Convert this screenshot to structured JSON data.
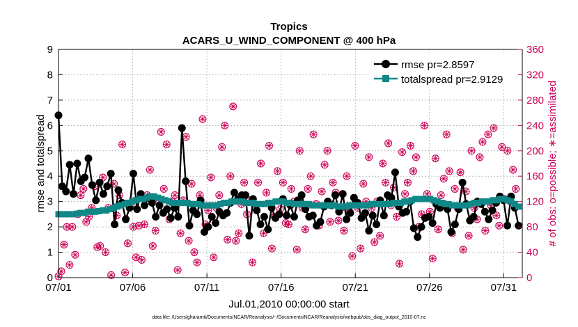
{
  "chart_data": {
    "type": "line",
    "title": "Tropics",
    "subtitle": "ACARS_U_WIND_COMPONENT @ 400 hPa",
    "xlabel": "Jul.01,2010 00:00:00 start",
    "ylabel": "rmse and totalspread",
    "ylabel_right": "# of obs: o=possible; ∗=assimilated",
    "footer": "data file: /Users/gharamti/Documents/NCAR/Reanalysis/~/Documents/NCAR/Reanalysis/webpub/obs_diag_output_2010-07.nc",
    "xlim": [
      0,
      31.25
    ],
    "ylim": [
      0,
      9
    ],
    "ylim_right": [
      0,
      360
    ],
    "x_tick_values": [
      0,
      5,
      10,
      15,
      20,
      25,
      30
    ],
    "x_tick_labels": [
      "07/01",
      "07/06",
      "07/11",
      "07/16",
      "07/21",
      "07/26",
      "07/31"
    ],
    "y_ticks": [
      0,
      1,
      2,
      3,
      4,
      5,
      6,
      7,
      8,
      9
    ],
    "y_ticks_right": [
      0,
      40,
      80,
      120,
      160,
      200,
      240,
      280,
      320,
      360
    ],
    "legend": [
      "rmse pr=2.8597",
      "totalspread pr=2.9129"
    ],
    "legend_position": "top-right",
    "grid": true,
    "series": [
      {
        "name": "rmse",
        "color": "#000000",
        "marker": "circle",
        "values": [
          6.4,
          3.6,
          3.4,
          4.45,
          3.3,
          4.5,
          3.8,
          3.95,
          4.7,
          3.65,
          3.05,
          3.75,
          3.3,
          3.6,
          4.1,
          2.1,
          3.45,
          2.95,
          2.3,
          2.75,
          4.1,
          2.7,
          3.3,
          2.85,
          3.15,
          2.95,
          2.4,
          2.85,
          2.55,
          2.7,
          2.35,
          2.75,
          2.4,
          5.9,
          3.8,
          2.05,
          2.65,
          2.5,
          3.05,
          1.8,
          2.0,
          2.4,
          2.15,
          2.6,
          2.45,
          2.55,
          2.95,
          3.35,
          3.1,
          3.25,
          3.25,
          1.65,
          3.1,
          2.65,
          2.1,
          2.4,
          1.9,
          2.75,
          2.35,
          2.5,
          3.1,
          2.45,
          2.85,
          2.4,
          3.05,
          3.25,
          2.7,
          2.4,
          2.45,
          2.05,
          2.2,
          2.8,
          3.0,
          2.85,
          3.25,
          2.6,
          3.3,
          2.3,
          2.55,
          3.15,
          2.95,
          2.35,
          2.55,
          1.85,
          2.45,
          2.1,
          3.05,
          2.45,
          3.25,
          3.15,
          4.15,
          2.8,
          2.55,
          2.6,
          3.0,
          1.95,
          1.6,
          2.0,
          2.35,
          2.4,
          2.15,
          2.9,
          2.75,
          2.9,
          2.7,
          1.8,
          2.1,
          2.7,
          3.75,
          2.9,
          2.25,
          2.4,
          3.0,
          2.9,
          2.6,
          2.3,
          2.65,
          2.95,
          3.2,
          3.05,
          2.05,
          3.2,
          2.75,
          2.05
        ]
      },
      {
        "name": "totalspread",
        "color": "#118888",
        "marker": "square",
        "values": [
          2.5,
          2.5,
          2.5,
          2.5,
          2.5,
          2.52,
          2.55,
          2.55,
          2.6,
          2.6,
          2.6,
          2.62,
          2.65,
          2.65,
          2.7,
          2.75,
          2.8,
          2.85,
          2.9,
          2.95,
          3.0,
          3.05,
          3.1,
          3.1,
          3.15,
          3.2,
          3.2,
          3.15,
          3.1,
          3.05,
          3.0,
          2.95,
          2.95,
          2.95,
          2.95,
          2.95,
          2.9,
          2.9,
          2.9,
          2.85,
          2.85,
          2.85,
          2.85,
          2.85,
          2.9,
          2.95,
          2.95,
          3.0,
          3.0,
          3.0,
          3.0,
          2.95,
          2.95,
          2.95,
          2.9,
          2.9,
          2.9,
          2.95,
          2.95,
          3.0,
          3.0,
          3.0,
          2.95,
          2.95,
          2.9,
          2.9,
          2.9,
          2.9,
          2.9,
          2.85,
          2.85,
          2.85,
          2.85,
          2.85,
          2.85,
          2.85,
          2.8,
          2.8,
          2.8,
          2.85,
          2.85,
          2.85,
          2.85,
          2.85,
          2.85,
          2.9,
          2.9,
          2.9,
          2.9,
          2.9,
          2.9,
          2.95,
          2.95,
          2.95,
          3.0,
          3.0,
          3.05,
          3.1,
          3.1,
          3.1,
          3.1,
          3.1,
          3.05,
          3.0,
          2.95,
          2.9,
          2.9,
          2.85,
          2.85,
          2.85,
          2.85,
          2.85,
          2.9,
          2.95,
          2.95,
          3.0,
          3.0,
          3.0,
          3.05,
          3.05,
          3.1,
          3.1,
          3.05,
          3.0,
          2.9,
          2.8
        ]
      }
    ],
    "obs_possible": [
      2,
      10,
      52,
      80,
      20,
      80,
      36,
      100,
      130,
      140,
      88,
      96,
      110,
      144,
      48,
      50,
      158,
      40,
      110,
      4,
      148,
      98,
      130,
      210,
      8,
      54,
      112,
      80,
      32,
      82,
      28,
      84,
      130,
      170,
      50,
      74,
      124,
      230,
      140,
      210,
      92,
      120,
      130,
      12,
      70,
      122,
      222,
      58,
      148,
      40,
      24,
      130,
      250,
      84,
      106,
      158,
      32,
      110,
      130,
      206,
      240,
      60,
      160,
      270,
      58,
      70,
      116,
      150,
      100,
      122,
      24,
      110,
      150,
      180,
      70,
      134,
      208,
      46,
      96,
      168,
      108,
      150,
      86,
      84,
      140,
      120,
      44,
      200,
      110,
      76,
      140,
      160,
      226,
      116,
      82,
      136,
      178,
      200,
      88,
      150,
      134,
      90,
      110,
      74,
      160,
      104,
      34,
      208,
      110,
      46,
      148,
      120,
      190,
      110,
      56,
      120,
      66,
      180,
      150,
      212,
      114,
      142,
      96,
      22,
      198,
      132,
      150,
      208,
      168,
      190,
      80,
      100,
      240,
      132,
      104,
      30,
      188,
      76,
      130,
      156,
      226,
      168,
      70,
      140,
      110,
      166,
      44,
      136,
      66,
      200,
      110,
      92,
      190,
      214,
      74,
      226,
      114,
      236,
      98,
      82,
      206,
      124,
      200,
      120,
      170,
      140
    ],
    "obs_assimilated": [
      2,
      10,
      52,
      80,
      20,
      80,
      36,
      100,
      130,
      140,
      88,
      96,
      110,
      144,
      48,
      50,
      158,
      40,
      110,
      4,
      148,
      98,
      130,
      210,
      8,
      54,
      112,
      80,
      32,
      82,
      28,
      84,
      130,
      170,
      50,
      74,
      124,
      230,
      140,
      210,
      92,
      120,
      130,
      12,
      70,
      122,
      222,
      58,
      148,
      40,
      24,
      130,
      250,
      84,
      106,
      158,
      32,
      110,
      130,
      206,
      240,
      60,
      160,
      270,
      58,
      70,
      116,
      150,
      100,
      122,
      24,
      110,
      150,
      180,
      70,
      134,
      208,
      46,
      96,
      168,
      108,
      150,
      86,
      84,
      140,
      120,
      44,
      200,
      110,
      76,
      140,
      160,
      226,
      116,
      82,
      136,
      178,
      200,
      88,
      150,
      134,
      90,
      110,
      74,
      160,
      104,
      34,
      208,
      110,
      46,
      148,
      120,
      190,
      110,
      56,
      120,
      66,
      180,
      150,
      212,
      114,
      142,
      96,
      22,
      198,
      132,
      150,
      208,
      168,
      190,
      80,
      100,
      240,
      132,
      104,
      30,
      188,
      76,
      130,
      156,
      226,
      168,
      70,
      140,
      110,
      166,
      44,
      136,
      66,
      200,
      110,
      92,
      190,
      214,
      74,
      226,
      114,
      236,
      98,
      82,
      206,
      124,
      200,
      120,
      170,
      140
    ]
  }
}
